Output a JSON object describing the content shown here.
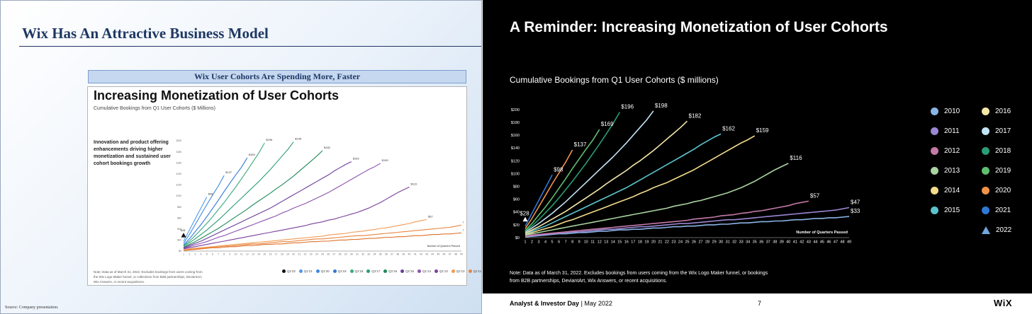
{
  "left_slide": {
    "title": "Wix Has An Attractive Business Model",
    "banner": "Wix User Cohorts Are Spending More, Faster",
    "inset": {
      "title": "Increasing Monetization of User Cohorts",
      "subtitle": "Cumulative Bookings from Q1 User Cohorts ($ Millions)",
      "body": "Innovation and product offering enhancements driving higher monetization and sustained user cohort bookings growth",
      "note": "Note: Data as of March 31, 2022. Excludes bookings from users coming from the Wix Logo Maker funnel, or collections from B2B partnerships, DeviantArt, Wix Answers, or recent acquisitions.",
      "axis_title": "Number of Quarters Passed",
      "legend": [
        "Q1'22",
        "Q1'21",
        "Q1'20",
        "Q1'19",
        "Q1'18",
        "Q1'17",
        "Q1'16",
        "Q1'15",
        "Q1'14",
        "Q1'13",
        "Q1'12",
        "Q1'11",
        "Q1'10"
      ]
    },
    "source": "Source: Company presentation."
  },
  "right_slide": {
    "title": "A Reminder: Increasing Monetization of User Cohorts",
    "subtitle": "Cumulative Bookings from Q1 User Cohorts ($ millions)",
    "note": "Note: Data as of March 31, 2022. Excludes bookings from users coming from the Wix Logo Maker funnel, or bookings from B2B partnerships, DeviantArt, Wix Answers, or recent acquisitions.",
    "footer_event": "Analyst & Investor Day",
    "footer_date": "| May 2022",
    "page_number": "7",
    "logo": "WiX"
  },
  "chart_data": [
    {
      "type": "line",
      "title": "Cumulative Bookings from Q1 User Cohorts ($ millions)",
      "xlabel": "Number of Quarters Passed",
      "ylabel": "$ millions",
      "x_ticks": [
        1,
        2,
        3,
        4,
        5,
        6,
        7,
        8,
        9,
        10,
        11,
        12,
        13,
        14,
        15,
        16,
        17,
        18,
        19,
        20,
        21,
        22,
        23,
        24,
        25,
        26,
        27,
        28,
        29,
        30,
        31,
        32,
        33,
        34,
        35,
        36,
        37,
        38,
        39,
        40,
        41,
        42,
        43,
        44,
        45,
        46,
        47,
        48,
        49
      ],
      "y_ticks": [
        "$0",
        "$20",
        "$40",
        "$60",
        "$80",
        "$100",
        "$120",
        "$140",
        "$160",
        "$180",
        "$200"
      ],
      "ylim": [
        0,
        200
      ],
      "xlim": [
        1,
        49
      ],
      "series": [
        {
          "name": "2010",
          "color": "#8ab4e6",
          "end_label": "$33",
          "values": [
            1,
            2,
            3,
            4,
            5,
            6,
            6,
            7,
            8,
            8,
            9,
            10,
            10,
            11,
            12,
            12,
            13,
            13,
            14,
            15,
            15,
            16,
            17,
            17,
            18,
            18,
            19,
            20,
            20,
            21,
            21,
            22,
            23,
            23,
            24,
            25,
            25,
            26,
            26,
            27,
            28,
            28,
            29,
            30,
            30,
            31,
            31,
            32,
            33
          ]
        },
        {
          "name": "2011",
          "color": "#9b87d3",
          "end_label": "$47",
          "values": [
            2,
            3,
            4,
            5,
            6,
            7,
            8,
            9,
            9,
            10,
            11,
            12,
            13,
            13,
            14,
            15,
            16,
            17,
            17,
            18,
            19,
            20,
            21,
            22,
            22,
            23,
            24,
            25,
            26,
            27,
            28,
            28,
            29,
            30,
            31,
            32,
            33,
            34,
            35,
            36,
            37,
            38,
            39,
            40,
            41,
            42,
            43,
            45,
            47
          ]
        },
        {
          "name": "2012",
          "color": "#c47aa8",
          "end_label": "$57",
          "values": [
            2,
            4,
            5,
            6,
            7,
            8,
            9,
            10,
            11,
            12,
            13,
            14,
            15,
            16,
            17,
            18,
            19,
            20,
            21,
            22,
            23,
            24,
            25,
            26,
            27,
            29,
            30,
            31,
            32,
            34,
            35,
            36,
            38,
            39,
            41,
            42,
            44,
            46,
            48,
            50,
            53,
            55,
            57
          ]
        },
        {
          "name": "2013",
          "color": "#a9d3a1",
          "end_label": "$116",
          "values": [
            4,
            6,
            8,
            10,
            12,
            14,
            16,
            18,
            20,
            22,
            24,
            26,
            28,
            30,
            32,
            34,
            36,
            38,
            40,
            42,
            44,
            46,
            49,
            51,
            53,
            56,
            58,
            61,
            64,
            67,
            70,
            74,
            78,
            83,
            88,
            94,
            100,
            106,
            111,
            116
          ]
        },
        {
          "name": "2014",
          "color": "#f3dc8c",
          "end_label": "$159",
          "values": [
            5,
            8,
            11,
            14,
            17,
            21,
            25,
            28,
            32,
            36,
            40,
            44,
            48,
            52,
            56,
            60,
            64,
            69,
            73,
            78,
            82,
            86,
            91,
            96,
            101,
            106,
            112,
            118,
            124,
            130,
            136,
            142,
            148,
            153,
            159
          ]
        },
        {
          "name": "2015",
          "color": "#5cc3cc",
          "end_label": "$162",
          "values": [
            6,
            10,
            14,
            18,
            23,
            28,
            33,
            38,
            43,
            48,
            53,
            58,
            63,
            68,
            73,
            78,
            84,
            90,
            96,
            102,
            108,
            114,
            120,
            126,
            132,
            138,
            145,
            151,
            157,
            162
          ]
        },
        {
          "name": "2016",
          "color": "#f5e7a8",
          "end_label": "$182",
          "values": [
            7,
            12,
            17,
            23,
            29,
            35,
            41,
            48,
            55,
            62,
            69,
            76,
            84,
            91,
            98,
            105,
            113,
            120,
            128,
            136,
            145,
            154,
            163,
            172,
            182
          ]
        },
        {
          "name": "2017",
          "color": "#c3e4f5",
          "end_label": "$198",
          "values": [
            9,
            15,
            22,
            30,
            38,
            47,
            56,
            66,
            76,
            86,
            96,
            106,
            116,
            126,
            137,
            148,
            160,
            172,
            184,
            198
          ]
        },
        {
          "name": "2018",
          "color": "#2a9d74",
          "end_label": "$196",
          "values": [
            10,
            18,
            28,
            39,
            50,
            62,
            75,
            88,
            102,
            116,
            131,
            146,
            162,
            178,
            196
          ]
        },
        {
          "name": "2019",
          "color": "#5fbf6e",
          "end_label": "$169",
          "values": [
            11,
            22,
            35,
            48,
            62,
            77,
            92,
            108,
            123,
            138,
            152,
            169
          ]
        },
        {
          "name": "2020",
          "color": "#f0934a",
          "end_label": "$137",
          "values": [
            14,
            30,
            48,
            66,
            84,
            101,
            118,
            137
          ]
        },
        {
          "name": "2021",
          "color": "#2f78d6",
          "end_label": "$98",
          "values": [
            18,
            38,
            58,
            78,
            98
          ]
        },
        {
          "name": "2022",
          "color": "#6fa8dc",
          "end_label": "$28",
          "marker": "triangle",
          "values": [
            28
          ]
        }
      ]
    }
  ]
}
